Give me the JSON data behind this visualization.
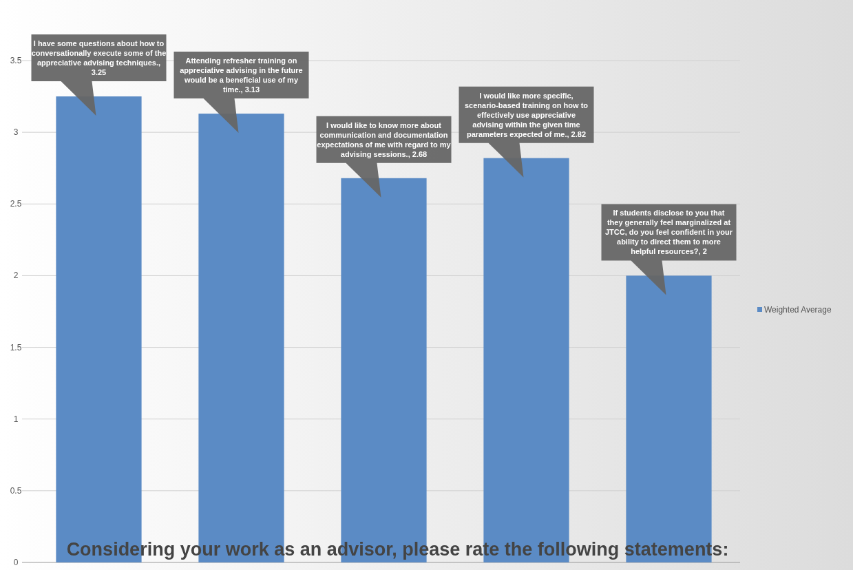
{
  "chart_data": {
    "type": "bar",
    "title": "Considering your work as an advisor, please rate the following statements:",
    "categories": [
      null,
      null,
      null,
      null,
      null
    ],
    "series": [
      {
        "name": "Weighted Average",
        "color": "#5b8bc5",
        "values": [
          3.25,
          3.13,
          2.68,
          2.82,
          2
        ],
        "value_labels": [
          "I have some questions  about how to conversationally execute some of the appreciative advising techniques., 3.25",
          "Attending refresher training on appreciative advising in the future would be a beneficial use of my time., 3.13",
          "I would like to know more about communication and documentation expectations of me with regard to my advising sessions., 2.68",
          "I would like more specific, scenario-based training on how to effectively use appreciative advising within the given time parameters expected of me., 2.82",
          "If students disclose to you that they generally feel marginalized at JTCC, do you feel confident  in your ability to direct them to more helpful resources?, 2"
        ]
      }
    ],
    "ylim": [
      0,
      3.5
    ],
    "yticks": [
      0,
      0.5,
      1,
      1.5,
      2,
      2.5,
      3,
      3.5
    ],
    "grid": "y",
    "legend": "right"
  }
}
